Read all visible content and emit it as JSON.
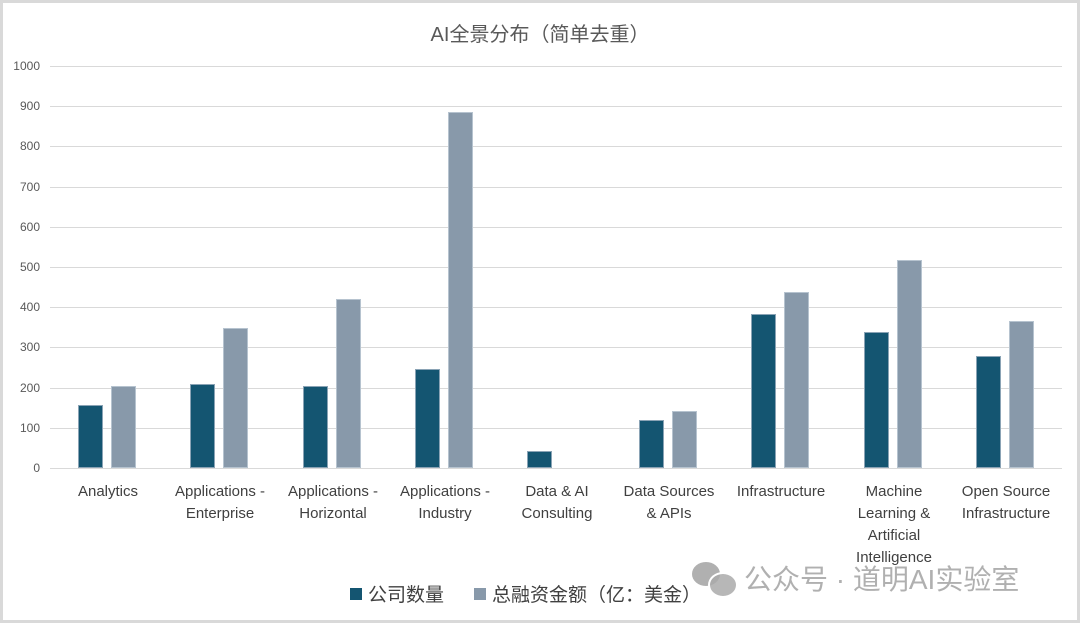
{
  "chart_data": {
    "type": "bar",
    "title": "AI全景分布（简单去重）",
    "xlabel": "",
    "ylabel": "",
    "ylim": [
      0,
      1000
    ],
    "yticks": [
      0,
      100,
      200,
      300,
      400,
      500,
      600,
      700,
      800,
      900,
      1000
    ],
    "grid": true,
    "legend_position": "bottom",
    "categories": [
      "Analytics",
      "Applications - Enterprise",
      "Applications - Horizontal",
      "Applications - Industry",
      "Data & AI Consulting",
      "Data Sources & APIs",
      "Infrastructure",
      "Machine Learning & Artificial Intelligence",
      "Open Source Infrastructure"
    ],
    "series": [
      {
        "name": "公司数量",
        "color": "#145571",
        "values": [
          156,
          208,
          203,
          247,
          42,
          119,
          382,
          338,
          279
        ]
      },
      {
        "name": "总融资金额（亿：美金）",
        "color": "#8899aa",
        "values": [
          203,
          348,
          420,
          885,
          0,
          142,
          438,
          517,
          366
        ]
      }
    ]
  },
  "display": {
    "title": "AI全景分布（简单去重）",
    "category_labels": [
      "Analytics",
      "Applications -\nEnterprise",
      "Applications -\nHorizontal",
      "Applications -\nIndustry",
      "Data & AI\nConsulting",
      "Data Sources\n& APIs",
      "Infrastructure",
      "Machine\nLearning &\nArtificial\nIntelligence",
      "Open Source\nInfrastructure"
    ],
    "legend": [
      "公司数量",
      "总融资金额（亿：美金）"
    ],
    "watermark": "公众号 · 道明AI实验室"
  }
}
